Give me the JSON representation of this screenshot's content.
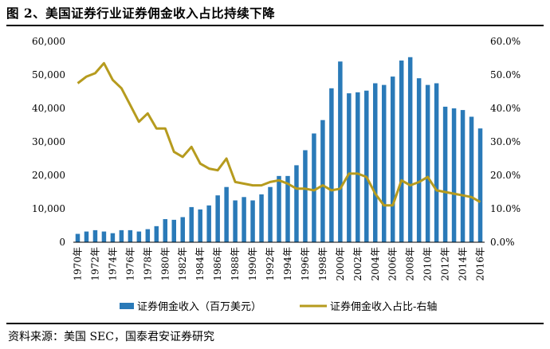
{
  "title": "图 2、美国证券行业证券佣金收入占比持续下降",
  "source": "资料来源：美国 SEC，国泰君安证券研究",
  "colors": {
    "bar": "#2a7ab8",
    "line": "#b69b1e",
    "axis": "#000000"
  },
  "chart_data": {
    "type": "bar+line",
    "years": [
      "1970年",
      "1971年",
      "1972年",
      "1973年",
      "1974年",
      "1975年",
      "1976年",
      "1977年",
      "1978年",
      "1979年",
      "1980年",
      "1981年",
      "1982年",
      "1983年",
      "1984年",
      "1985年",
      "1986年",
      "1987年",
      "1988年",
      "1989年",
      "1990年",
      "1991年",
      "1992年",
      "1993年",
      "1994年",
      "1995年",
      "1996年",
      "1997年",
      "1998年",
      "1999年",
      "2000年",
      "2001年",
      "2002年",
      "2003年",
      "2004年",
      "2005年",
      "2006年",
      "2007年",
      "2008年",
      "2009年",
      "2010年",
      "2011年",
      "2012年",
      "2013年",
      "2014年",
      "2015年",
      "2016年"
    ],
    "x_tick_labels": [
      "1970年",
      "1972年",
      "1974年",
      "1976年",
      "1978年",
      "1980年",
      "1982年",
      "1984年",
      "1986年",
      "1988年",
      "1990年",
      "1992年",
      "1994年",
      "1996年",
      "1998年",
      "2000年",
      "2002年",
      "2004年",
      "2006年",
      "2008年",
      "2010年",
      "2012年",
      "2014年",
      "2016年"
    ],
    "series": [
      {
        "name": "证券佣金收入（百万美元）",
        "type": "bar",
        "axis": "left",
        "values": [
          2500,
          3200,
          3600,
          3200,
          2700,
          3600,
          3600,
          3200,
          3900,
          4800,
          6900,
          6700,
          7500,
          10500,
          9800,
          11000,
          14000,
          16500,
          12500,
          13500,
          12500,
          14300,
          16500,
          19800,
          19800,
          23000,
          27500,
          32500,
          36500,
          46000,
          54000,
          44500,
          44800,
          45300,
          47500,
          47000,
          49500,
          54300,
          55300,
          49000,
          47000,
          47500,
          40500,
          40000,
          39500,
          37500,
          34000
        ]
      },
      {
        "name": "证券佣金收入占比-右轴",
        "type": "line",
        "axis": "right",
        "values": [
          47.5,
          49.5,
          50.5,
          53.5,
          48.5,
          46,
          41,
          36,
          38.5,
          34,
          34,
          27,
          25.5,
          28.5,
          23.5,
          22,
          21.5,
          25,
          18,
          17.5,
          17,
          17,
          18,
          18.5,
          17.5,
          16,
          16,
          15.5,
          17,
          15.5,
          16,
          20.5,
          20.5,
          19.5,
          14.5,
          11,
          11,
          18.5,
          17,
          18,
          19.5,
          15.5,
          15,
          14.5,
          14,
          13.5,
          12
        ]
      }
    ],
    "left_axis": {
      "min": 0,
      "max": 60000,
      "ticks": [
        "0",
        "10,000",
        "20,000",
        "30,000",
        "40,000",
        "50,000",
        "60,000"
      ]
    },
    "right_axis": {
      "min": 0,
      "max": 60,
      "ticks": [
        "0.0%",
        "10.0%",
        "20.0%",
        "30.0%",
        "40.0%",
        "50.0%",
        "60.0%"
      ]
    },
    "legend": {
      "position": "bottom",
      "bar_label": "证券佣金收入（百万美元）",
      "line_label": "证券佣金收入占比-右轴"
    }
  }
}
